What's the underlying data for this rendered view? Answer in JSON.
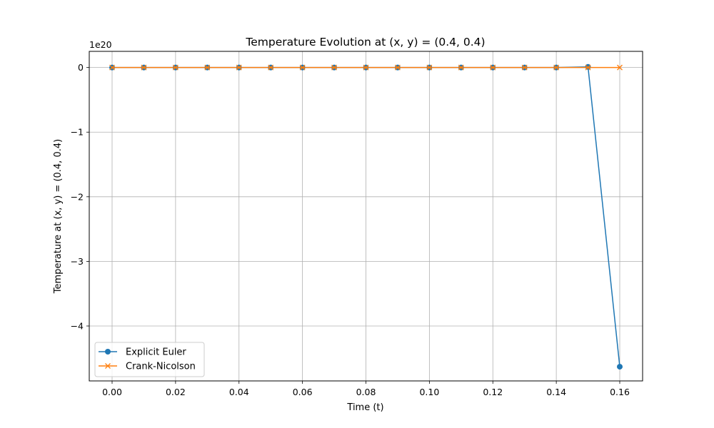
{
  "chart_data": {
    "type": "line",
    "title": "Temperature Evolution at (x, y) = (0.4, 0.4)",
    "xlabel": "Time (t)",
    "ylabel": "Temperature at (x, y) = (0.4, 0.4)",
    "y_offset_label": "1e20",
    "xlim": [
      -0.0072,
      0.1672
    ],
    "ylim": [
      -4.85,
      0.25
    ],
    "y_scale_factor": 1e+20,
    "x_ticks": [
      0.0,
      0.02,
      0.04,
      0.06,
      0.08,
      0.1,
      0.12,
      0.14,
      0.16
    ],
    "x_tick_labels": [
      "0.00",
      "0.02",
      "0.04",
      "0.06",
      "0.08",
      "0.10",
      "0.12",
      "0.14",
      "0.16"
    ],
    "y_ticks": [
      0,
      -1,
      -2,
      -3,
      -4
    ],
    "y_tick_labels": [
      "0",
      "−1",
      "−2",
      "−3",
      "−4"
    ],
    "grid": true,
    "legend_position": "lower-left",
    "x": [
      0.0,
      0.01,
      0.02,
      0.03,
      0.04,
      0.05,
      0.06,
      0.07,
      0.08,
      0.09,
      0.1,
      0.11,
      0.12,
      0.13,
      0.14,
      0.15,
      0.16
    ],
    "series": [
      {
        "name": "Explicit Euler",
        "color": "#1f77b4",
        "marker": "circle",
        "values": [
          0,
          0,
          0,
          0,
          0,
          0,
          0,
          0,
          0,
          0,
          0,
          0,
          0,
          0,
          0,
          0.01,
          -4.63
        ]
      },
      {
        "name": "Crank-Nicolson",
        "color": "#ff7f0e",
        "marker": "x",
        "values": [
          0,
          0,
          0,
          0,
          0,
          0,
          0,
          0,
          0,
          0,
          0,
          0,
          0,
          0,
          0,
          0,
          0
        ]
      }
    ]
  }
}
